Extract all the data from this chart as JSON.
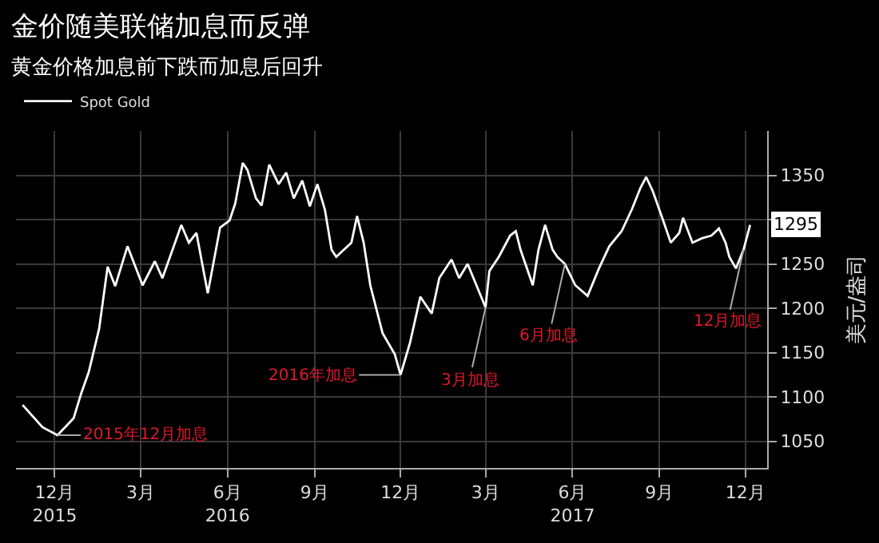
{
  "chart_data": {
    "type": "line",
    "title": "金价随美联储加息而反弹",
    "subtitle": "黄金价格加息前下跌而加息后回升",
    "ylabel": "美元/盎司",
    "x": [
      "2015-11-11",
      "2015-12-02",
      "2015-12-18",
      "2016-01-04",
      "2016-01-12",
      "2016-01-20",
      "2016-01-31",
      "2016-02-09",
      "2016-02-17",
      "2016-03-01",
      "2016-03-17",
      "2016-03-30",
      "2016-04-07",
      "2016-04-27",
      "2016-05-05",
      "2016-05-13",
      "2016-05-25",
      "2016-06-07",
      "2016-06-17",
      "2016-06-23",
      "2016-07-01",
      "2016-07-06",
      "2016-07-15",
      "2016-07-21",
      "2016-07-29",
      "2016-08-08",
      "2016-08-16",
      "2016-08-24",
      "2016-09-02",
      "2016-09-10",
      "2016-09-18",
      "2016-09-26",
      "2016-10-03",
      "2016-10-08",
      "2016-10-16",
      "2016-10-24",
      "2016-10-30",
      "2016-11-06",
      "2016-11-13",
      "2016-11-26",
      "2016-12-09",
      "2016-12-15",
      "2016-12-25",
      "2017-01-05",
      "2017-01-17",
      "2017-01-25",
      "2017-02-07",
      "2017-02-15",
      "2017-02-24",
      "2017-03-15",
      "2017-03-19",
      "2017-03-29",
      "2017-04-10",
      "2017-04-16",
      "2017-04-21",
      "2017-05-04",
      "2017-05-10",
      "2017-05-17",
      "2017-05-25",
      "2017-05-30",
      "2017-06-07",
      "2017-06-18",
      "2017-07-01",
      "2017-07-13",
      "2017-07-24",
      "2017-08-06",
      "2017-08-17",
      "2017-08-26",
      "2017-09-01",
      "2017-09-08",
      "2017-09-19",
      "2017-09-27",
      "2017-10-06",
      "2017-10-10",
      "2017-10-20",
      "2017-10-30",
      "2017-11-09",
      "2017-11-17",
      "2017-11-24",
      "2017-11-28",
      "2017-12-05",
      "2017-12-13",
      "2017-12-20"
    ],
    "series": [
      {
        "name": "Spot Gold",
        "color": "#ffffff",
        "values": [
          1091,
          1066,
          1057,
          1076,
          1104,
          1128,
          1177,
          1247,
          1225,
          1270,
          1226,
          1253,
          1234,
          1294,
          1274,
          1285,
          1217,
          1291,
          1299,
          1318,
          1364,
          1356,
          1324,
          1316,
          1362,
          1340,
          1353,
          1324,
          1344,
          1315,
          1340,
          1311,
          1266,
          1258,
          1266,
          1274,
          1304,
          1274,
          1226,
          1172,
          1148,
          1125,
          1161,
          1213,
          1194,
          1234,
          1255,
          1234,
          1250,
          1201,
          1242,
          1258,
          1282,
          1287,
          1266,
          1226,
          1266,
          1294,
          1266,
          1258,
          1250,
          1226,
          1214,
          1245,
          1270,
          1287,
          1312,
          1336,
          1348,
          1332,
          1299,
          1274,
          1285,
          1302,
          1274,
          1279,
          1282,
          1290,
          1274,
          1258,
          1245,
          1266,
          1294
        ]
      }
    ],
    "xlim": [
      "2015-11-04",
      "2018-01-07"
    ],
    "xticks": [
      {
        "value": "2015-12-15",
        "label": "12月\n2015"
      },
      {
        "value": "2016-03-15",
        "label": "3月"
      },
      {
        "value": "2016-06-15",
        "label": "6月\n2016"
      },
      {
        "value": "2016-09-15",
        "label": "9月"
      },
      {
        "value": "2016-12-15",
        "label": "12月"
      },
      {
        "value": "2017-03-15",
        "label": "3月"
      },
      {
        "value": "2017-06-15",
        "label": "6月\n2017"
      },
      {
        "value": "2017-09-15",
        "label": "9月"
      },
      {
        "value": "2017-12-15",
        "label": "12月"
      }
    ],
    "ylim": [
      1020,
      1400
    ],
    "yticks": [
      1050,
      1100,
      1150,
      1200,
      1250,
      {
        "value": 1300,
        "label": null
      },
      1350
    ],
    "annotations": [
      {
        "text": "2015年12月加息",
        "x": "2015-12-18",
        "y": 1057
      },
      {
        "text": "2016年加息",
        "x": "2016-12-15",
        "y": 1125
      },
      {
        "text": "3月加息",
        "x": "2017-03-15",
        "y": 1201
      },
      {
        "text": "6月加息",
        "x": "2017-06-07",
        "y": 1250
      },
      {
        "text": "12月加息",
        "x": "2017-12-13",
        "y": 1266
      },
      {
        "text": "1295",
        "y": 1295
      }
    ],
    "grid": true,
    "legend": "top left",
    "marker": "none",
    "line_style": "solid"
  }
}
